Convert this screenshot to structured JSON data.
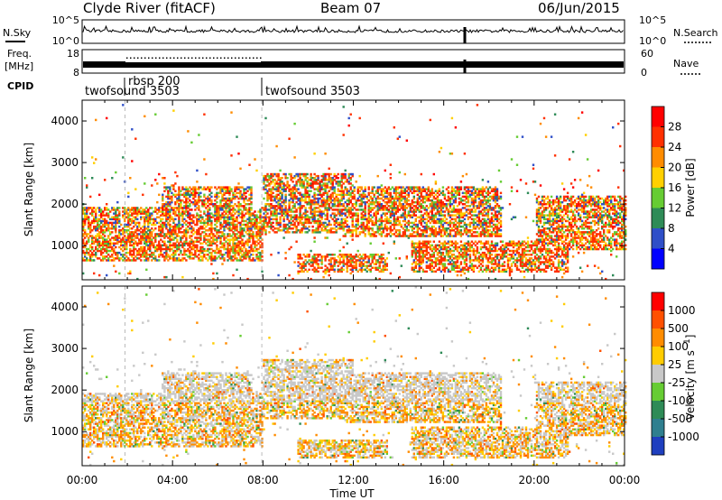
{
  "header": {
    "station": "Clyde River (fitACF)",
    "beam": "Beam 07",
    "date": "06/Jun/2015"
  },
  "strips": {
    "nsky_label": "N.Sky",
    "nsky_ticks": [
      "10^5",
      "10^0"
    ],
    "nsearch_label": "N.Search",
    "nsearch_ticks": [
      "10^5",
      "10^0"
    ],
    "freq_label_1": "Freq.",
    "freq_label_2": "[MHz]",
    "freq_ticks": [
      "18",
      "8"
    ],
    "nave_label": "Nave",
    "nave_ticks": [
      "60",
      "0"
    ],
    "cpid_label": "CPID",
    "cpid_segments": [
      {
        "name": "twofsound 3503",
        "start_h": 0
      },
      {
        "name": "rbsp 200",
        "start_h": 1.9
      },
      {
        "name": "twofsound 3503",
        "start_h": 7.95
      }
    ]
  },
  "chart_data": [
    {
      "type": "heatmap",
      "title": "",
      "ylabel": "Slant Range [km]",
      "xlim": [
        0,
        24
      ],
      "ylim": [
        180,
        4500
      ],
      "y_ticks": [
        1000,
        2000,
        3000,
        4000
      ],
      "colorbar": {
        "label": "Power [dB]",
        "ticks": [
          "4",
          "8",
          "12",
          "16",
          "20",
          "24",
          "28"
        ],
        "colors": [
          "#0000ff",
          "#2f4fc8",
          "#2e8b57",
          "#66cc33",
          "#ffd000",
          "#ff8c00",
          "#ff3000",
          "#ff0000"
        ]
      },
      "bands": [
        {
          "t0": 0.0,
          "t1": 8.0,
          "r0": 600,
          "r1": 1900
        },
        {
          "t0": 3.5,
          "t1": 7.5,
          "r0": 1700,
          "r1": 2400
        },
        {
          "t0": 8.0,
          "t1": 12.0,
          "r0": 1300,
          "r1": 2700
        },
        {
          "t0": 9.5,
          "t1": 13.5,
          "r0": 350,
          "r1": 800
        },
        {
          "t0": 14.5,
          "t1": 21.5,
          "r0": 350,
          "r1": 1100
        },
        {
          "t0": 20.0,
          "t1": 24.0,
          "r0": 900,
          "r1": 2200
        },
        {
          "t0": 11.5,
          "t1": 18.5,
          "r0": 1200,
          "r1": 2400
        }
      ]
    },
    {
      "type": "heatmap",
      "title": "",
      "ylabel": "Slant Range [km]",
      "xlabel": "Time UT",
      "xlim": [
        0,
        24
      ],
      "ylim": [
        180,
        4500
      ],
      "x_ticks": [
        "00:00",
        "04:00",
        "08:00",
        "12:00",
        "16:00",
        "20:00",
        "00:00"
      ],
      "y_ticks": [
        1000,
        2000,
        3000,
        4000
      ],
      "colorbar": {
        "label": "Velocity [m s^-1]",
        "ticks": [
          "1000",
          "500",
          "100",
          "25",
          "-25",
          "-100",
          "-500",
          "-1000"
        ],
        "colors": [
          "#1f3fbf",
          "#2f7f8f",
          "#2e8b57",
          "#66cc33",
          "#c8c8c8",
          "#ffcc00",
          "#ff8c00",
          "#ff5000",
          "#ff0000"
        ]
      },
      "bands": [
        {
          "t0": 0.0,
          "t1": 8.0,
          "r0": 600,
          "r1": 1900
        },
        {
          "t0": 3.5,
          "t1": 7.5,
          "r0": 1700,
          "r1": 2400
        },
        {
          "t0": 8.0,
          "t1": 12.0,
          "r0": 1300,
          "r1": 2700
        },
        {
          "t0": 9.5,
          "t1": 13.5,
          "r0": 350,
          "r1": 800
        },
        {
          "t0": 14.5,
          "t1": 21.5,
          "r0": 350,
          "r1": 1100
        },
        {
          "t0": 20.0,
          "t1": 24.0,
          "r0": 900,
          "r1": 2200
        },
        {
          "t0": 11.5,
          "t1": 18.5,
          "r0": 1200,
          "r1": 2400
        }
      ]
    }
  ]
}
